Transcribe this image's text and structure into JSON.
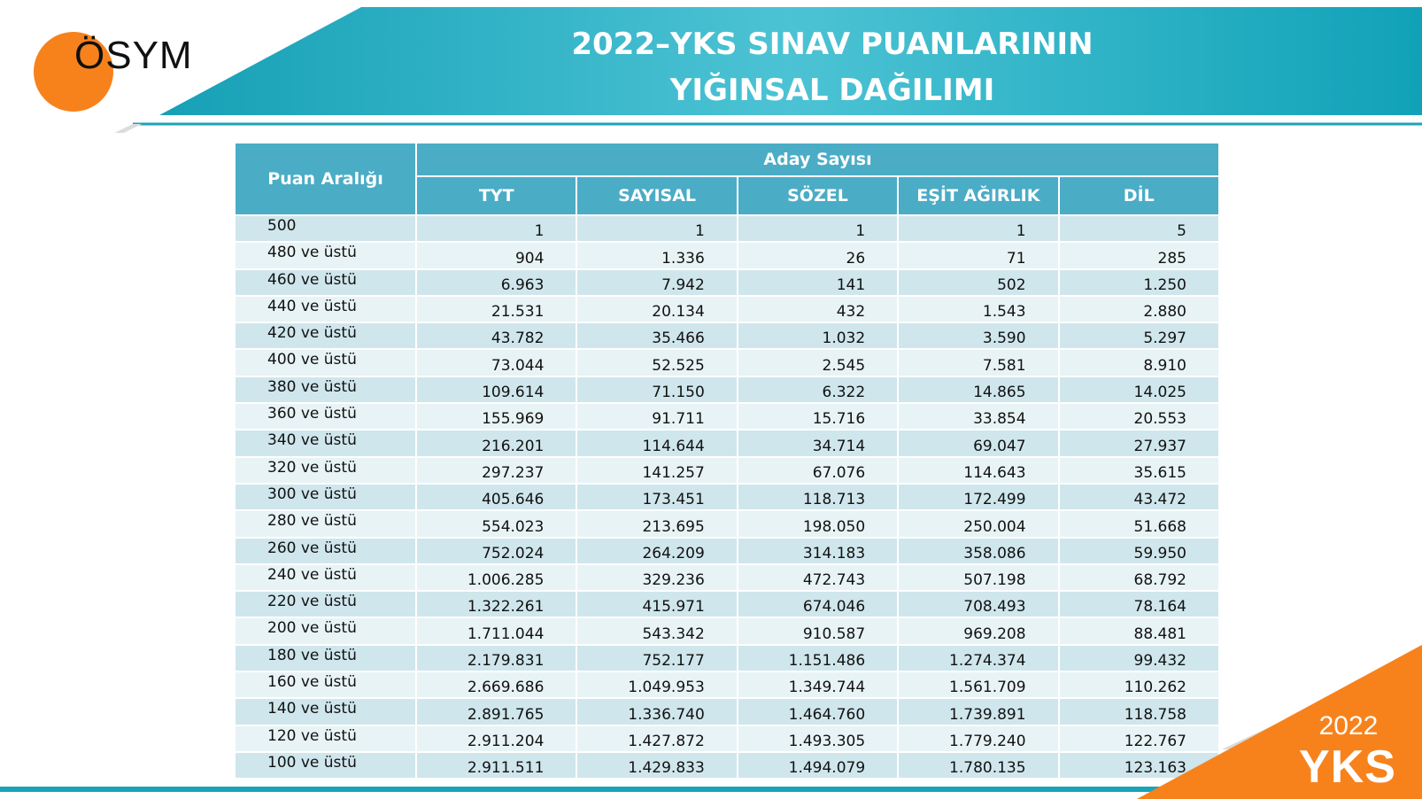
{
  "header": {
    "logo_text": "ÖSYM",
    "title_line1": "2022–YKS SINAV PUANLARININ",
    "title_line2": "YIĞINSAL DAĞILIMI"
  },
  "table": {
    "row_header": "Puan Aralığı",
    "group_header": "Aday Sayısı",
    "columns": [
      "TYT",
      "SAYISAL",
      "SÖZEL",
      "EŞİT AĞIRLIK",
      "DİL"
    ],
    "rows": [
      [
        "500",
        "1",
        "1",
        "1",
        "1",
        "5"
      ],
      [
        "480 ve üstü",
        "904",
        "1.336",
        "26",
        "71",
        "285"
      ],
      [
        "460 ve üstü",
        "6.963",
        "7.942",
        "141",
        "502",
        "1.250"
      ],
      [
        "440 ve üstü",
        "21.531",
        "20.134",
        "432",
        "1.543",
        "2.880"
      ],
      [
        "420 ve üstü",
        "43.782",
        "35.466",
        "1.032",
        "3.590",
        "5.297"
      ],
      [
        "400 ve üstü",
        "73.044",
        "52.525",
        "2.545",
        "7.581",
        "8.910"
      ],
      [
        "380 ve üstü",
        "109.614",
        "71.150",
        "6.322",
        "14.865",
        "14.025"
      ],
      [
        "360 ve üstü",
        "155.969",
        "91.711",
        "15.716",
        "33.854",
        "20.553"
      ],
      [
        "340 ve üstü",
        "216.201",
        "114.644",
        "34.714",
        "69.047",
        "27.937"
      ],
      [
        "320 ve üstü",
        "297.237",
        "141.257",
        "67.076",
        "114.643",
        "35.615"
      ],
      [
        "300 ve üstü",
        "405.646",
        "173.451",
        "118.713",
        "172.499",
        "43.472"
      ],
      [
        "280 ve üstü",
        "554.023",
        "213.695",
        "198.050",
        "250.004",
        "51.668"
      ],
      [
        "260 ve üstü",
        "752.024",
        "264.209",
        "314.183",
        "358.086",
        "59.950"
      ],
      [
        "240 ve üstü",
        "1.006.285",
        "329.236",
        "472.743",
        "507.198",
        "68.792"
      ],
      [
        "220 ve üstü",
        "1.322.261",
        "415.971",
        "674.046",
        "708.493",
        "78.164"
      ],
      [
        "200 ve üstü",
        "1.711.044",
        "543.342",
        "910.587",
        "969.208",
        "88.481"
      ],
      [
        "180 ve üstü",
        "2.179.831",
        "752.177",
        "1.151.486",
        "1.274.374",
        "99.432"
      ],
      [
        "160 ve üstü",
        "2.669.686",
        "1.049.953",
        "1.349.744",
        "1.561.709",
        "110.262"
      ],
      [
        "140 ve üstü",
        "2.891.765",
        "1.336.740",
        "1.464.760",
        "1.739.891",
        "118.758"
      ],
      [
        "120 ve üstü",
        "2.911.204",
        "1.427.872",
        "1.493.305",
        "1.779.240",
        "122.767"
      ],
      [
        "100 ve üstü",
        "2.911.511",
        "1.429.833",
        "1.494.079",
        "1.780.135",
        "123.163"
      ]
    ]
  },
  "badge": {
    "year": "2022",
    "label": "YKS"
  },
  "colors": {
    "teal": "#1aa3b8",
    "header_cell": "#4bacc6",
    "row_dark": "#cfe6ec",
    "row_light": "#e8f3f6",
    "orange": "#f7821c"
  }
}
